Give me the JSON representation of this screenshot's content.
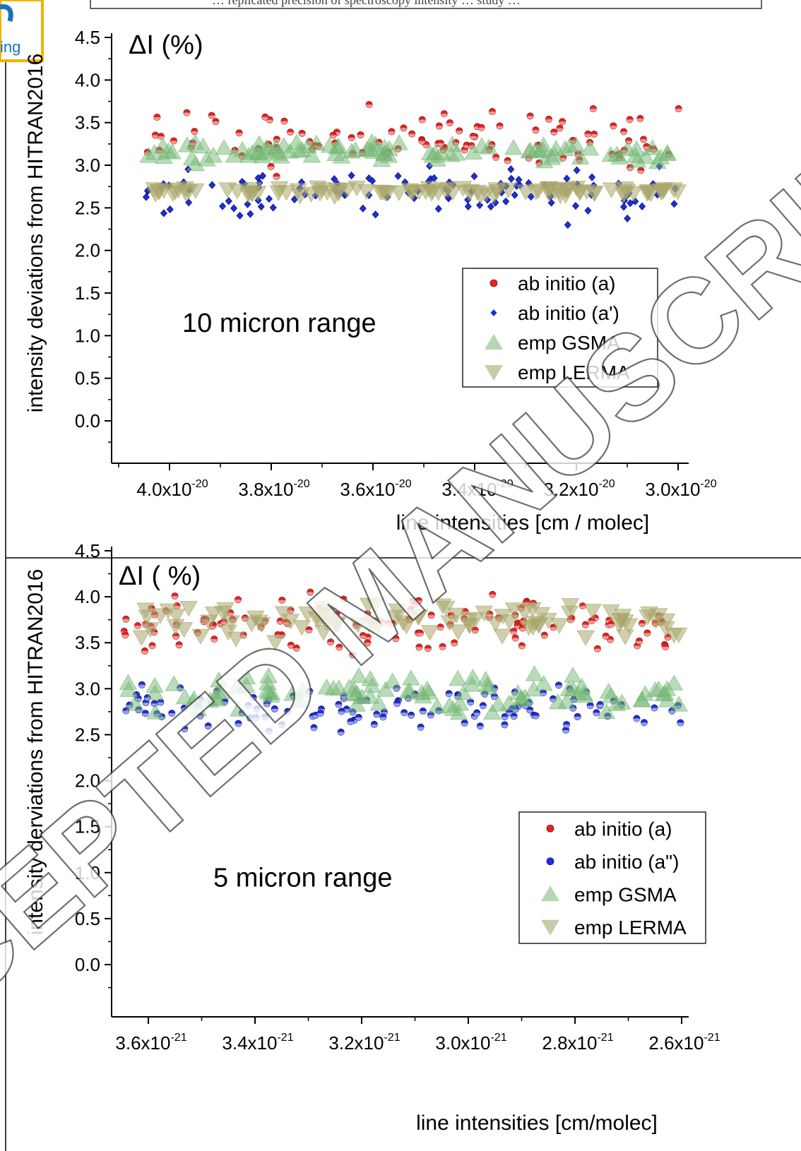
{
  "header": {
    "caption": "… replicated precision of spectroscopy intensity … study …",
    "logo_fragment": "ing"
  },
  "watermark": "ACCEPTED MANUSCRIPT",
  "colors": {
    "ab_initio_a": "#e8231e",
    "ab_initio_a_prime": "#1f2fd6",
    "emp_gsma": "#74b874",
    "emp_lerma": "#a8a66a"
  },
  "chart_data": [
    {
      "type": "scatter",
      "title": "ΔI (%)",
      "annotation": "10 micron range",
      "xlabel": "line intensities [cm / molec]",
      "ylabel": "intensity deviations from HITRAN2016",
      "ylim": [
        -0.45,
        4.5
      ],
      "xlim": [
        4.11e-20,
        2.96e-20
      ],
      "x_reversed": true,
      "yticks": [
        "4.5",
        "4.0",
        "3.5",
        "3.0",
        "2.5",
        "2.0",
        "1.5",
        "1.0",
        "0.5",
        "0.0"
      ],
      "xticks": [
        {
          "mant": "4.0x10",
          "exp": "-20"
        },
        {
          "mant": "3.8x10",
          "exp": "-20"
        },
        {
          "mant": "3.6x10",
          "exp": "-20"
        },
        {
          "mant": "3.4x10",
          "exp": "-20"
        },
        {
          "mant": "3.2x10",
          "exp": "-20"
        },
        {
          "mant": "3.0x10",
          "exp": "-20"
        }
      ],
      "legend_position": "center-right",
      "series": [
        {
          "name": "ab initio (a)",
          "marker": "circle",
          "center": 3.3,
          "spread": 0.28,
          "count": 105
        },
        {
          "name": "ab initio (a')",
          "marker": "diamond",
          "center": 2.68,
          "spread": 0.24,
          "count": 110
        },
        {
          "name": "emp GSMA",
          "marker": "triangle-up",
          "center": 3.15,
          "spread": 0.1,
          "count": 95
        },
        {
          "name": "emp LERMA",
          "marker": "triangle-down",
          "center": 2.7,
          "spread": 0.04,
          "count": 100
        }
      ]
    },
    {
      "type": "scatter",
      "title": "ΔI ( %)",
      "annotation": "5 micron range",
      "xlabel": "line intensities [cm/molec]",
      "ylabel": "intensity derviations from HITRAN2016",
      "ylim": [
        -0.45,
        4.5
      ],
      "xlim": [
        3.67e-21,
        2.57e-21
      ],
      "x_reversed": true,
      "yticks": [
        "4.5",
        "4.0",
        "3.5",
        "3.0",
        "2.5",
        "2.0",
        "1.5",
        "1.0",
        "0.5",
        "0.0"
      ],
      "xticks": [
        {
          "mant": "3.6x10",
          "exp": "-21"
        },
        {
          "mant": "3.4x10",
          "exp": "-21"
        },
        {
          "mant": "3.2x10",
          "exp": "-21"
        },
        {
          "mant": "3.0x10",
          "exp": "-21"
        },
        {
          "mant": "2.8x10",
          "exp": "-21"
        },
        {
          "mant": "2.6x10",
          "exp": "-21"
        }
      ],
      "legend_position": "center-right",
      "series": [
        {
          "name": "ab initio (a)",
          "marker": "circle",
          "center": 3.7,
          "spread": 0.25,
          "count": 125
        },
        {
          "name": "ab initio (a\")",
          "marker": "circle",
          "center": 2.8,
          "spread": 0.22,
          "count": 120
        },
        {
          "name": "emp GSMA",
          "marker": "triangle-up",
          "center": 2.95,
          "spread": 0.18,
          "count": 100
        },
        {
          "name": "emp LERMA",
          "marker": "triangle-down",
          "center": 3.75,
          "spread": 0.18,
          "count": 95
        }
      ]
    }
  ]
}
